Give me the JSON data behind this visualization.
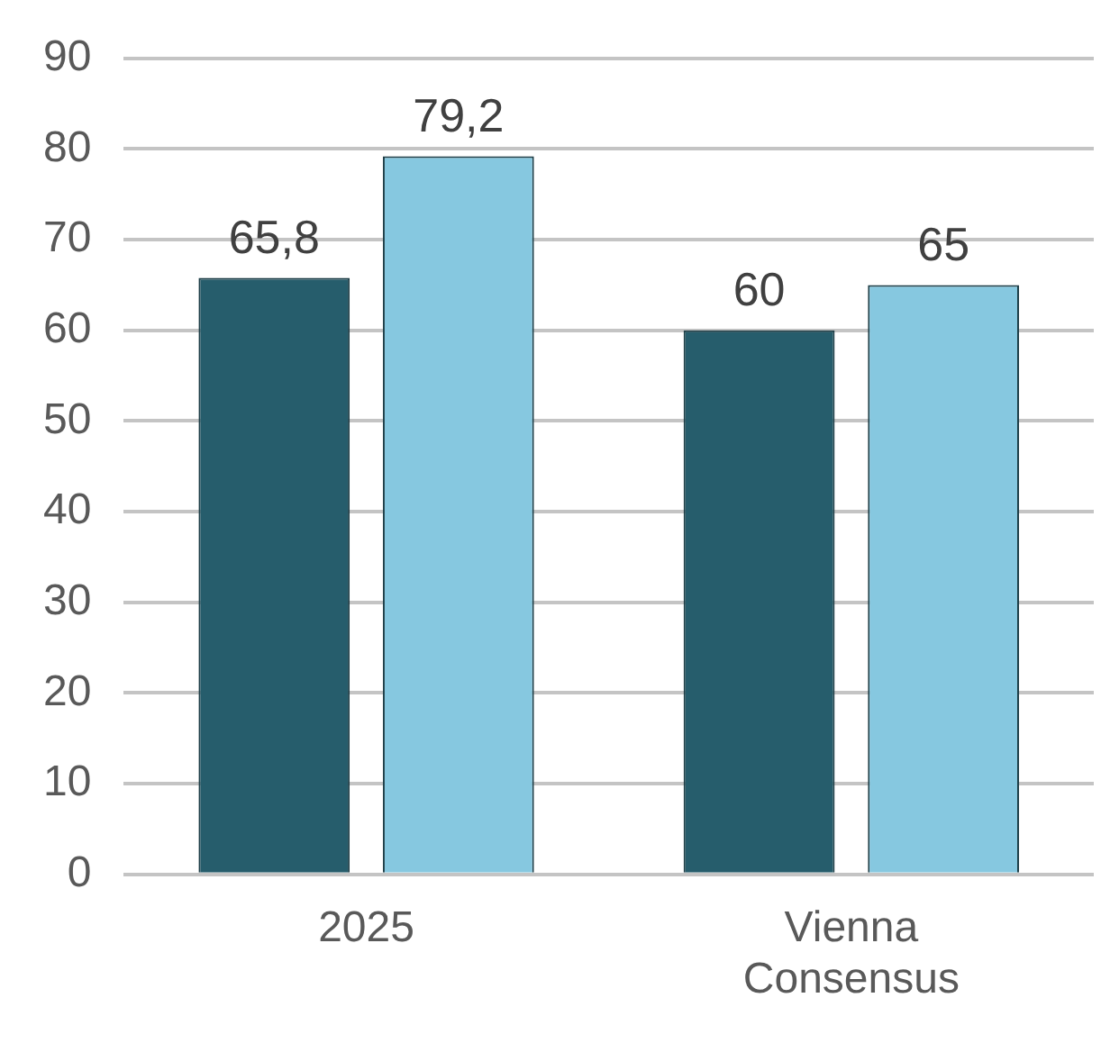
{
  "chart_data": {
    "type": "bar",
    "categories": [
      "2025",
      "Vienna Consensus"
    ],
    "series": [
      {
        "color": "#265d6c",
        "values": [
          65.8,
          60
        ],
        "value_labels": [
          "65,8",
          "60"
        ]
      },
      {
        "color": "#86c8e0",
        "values": [
          79.2,
          65
        ],
        "value_labels": [
          "79,2",
          "65"
        ]
      }
    ],
    "ylim": [
      0,
      90
    ],
    "yticks": [
      0,
      10,
      20,
      30,
      40,
      50,
      60,
      70,
      80,
      90
    ],
    "grid": "y",
    "legend": false
  }
}
